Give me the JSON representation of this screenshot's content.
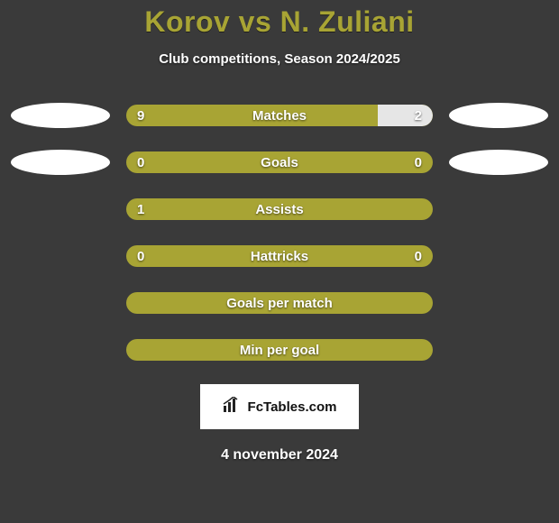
{
  "title": "Korov vs N. Zuliani",
  "subtitle": "Club competitions, Season 2024/2025",
  "colors": {
    "bar_primary": "#a8a434",
    "bar_secondary": "#e6e6e6",
    "background": "#3a3a3a",
    "text": "#ffffff",
    "title_color": "#a8a434",
    "badge_bg": "#ffffff",
    "badge_text": "#111111"
  },
  "bars": [
    {
      "label": "Matches",
      "left_value": "9",
      "right_value": "2",
      "right_fill_pct": 18,
      "show_left_ellipse": true,
      "show_right_ellipse": true
    },
    {
      "label": "Goals",
      "left_value": "0",
      "right_value": "0",
      "right_fill_pct": 0,
      "show_left_ellipse": true,
      "show_right_ellipse": true
    },
    {
      "label": "Assists",
      "left_value": "1",
      "right_value": "",
      "right_fill_pct": 0,
      "show_left_ellipse": false,
      "show_right_ellipse": false
    },
    {
      "label": "Hattricks",
      "left_value": "0",
      "right_value": "0",
      "right_fill_pct": 0,
      "show_left_ellipse": false,
      "show_right_ellipse": false
    },
    {
      "label": "Goals per match",
      "left_value": "",
      "right_value": "",
      "right_fill_pct": 0,
      "show_left_ellipse": false,
      "show_right_ellipse": false
    },
    {
      "label": "Min per goal",
      "left_value": "",
      "right_value": "",
      "right_fill_pct": 0,
      "show_left_ellipse": false,
      "show_right_ellipse": false
    }
  ],
  "badge": {
    "icon_name": "chart-icon",
    "text": "FcTables.com"
  },
  "date": "4 november 2024"
}
